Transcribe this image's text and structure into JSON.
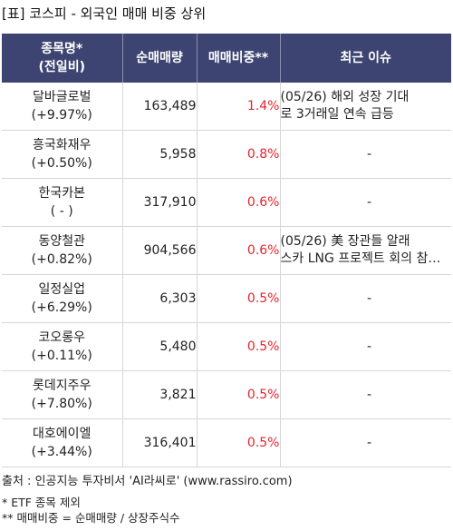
{
  "title": "[표] 코스피 - 외국인 매매 비중 상위",
  "table": {
    "headers": {
      "name_line1": "종목명*",
      "name_line2": "(전일비)",
      "volume": "순매매량",
      "ratio": "매매비중**",
      "issue": "최근 이슈"
    },
    "rows": [
      {
        "name": "달바글로벌",
        "change": "(+9.97%)",
        "volume": "163,489",
        "ratio": "1.4%",
        "issue_line1": "(05/26) 해외 성장 기대",
        "issue_line2": "로 3거래일 연속 급등"
      },
      {
        "name": "흥국화재우",
        "change": "(+0.50%)",
        "volume": "5,958",
        "ratio": "0.8%",
        "issue_line1": "-",
        "issue_line2": ""
      },
      {
        "name": "한국카본",
        "change": "( - )",
        "volume": "317,910",
        "ratio": "0.6%",
        "issue_line1": "-",
        "issue_line2": ""
      },
      {
        "name": "동양철관",
        "change": "(+0.82%)",
        "volume": "904,566",
        "ratio": "0.6%",
        "issue_line1": "(05/26) 美 장관들 알래",
        "issue_line2": "스카 LNG 프로젝트 회의 참…"
      },
      {
        "name": "일정실업",
        "change": "(+6.29%)",
        "volume": "6,303",
        "ratio": "0.5%",
        "issue_line1": "-",
        "issue_line2": ""
      },
      {
        "name": "코오롱우",
        "change": "(+0.11%)",
        "volume": "5,480",
        "ratio": "0.5%",
        "issue_line1": "-",
        "issue_line2": ""
      },
      {
        "name": "롯데지주우",
        "change": "(+7.80%)",
        "volume": "3,821",
        "ratio": "0.5%",
        "issue_line1": "-",
        "issue_line2": ""
      },
      {
        "name": "대호에이엘",
        "change": "(+3.44%)",
        "volume": "316,401",
        "ratio": "0.5%",
        "issue_line1": "-",
        "issue_line2": ""
      }
    ]
  },
  "source": "출처 : 인공지능 투자비서 'AI라씨로' (www.rassiro.com)",
  "notes": {
    "note1": "* ETF 종목 제외",
    "note2": "** 매매비중 = 순매매량 / 상장주식수"
  },
  "colors": {
    "header_bg": "#3d4471",
    "ratio_text": "#e6222e"
  }
}
